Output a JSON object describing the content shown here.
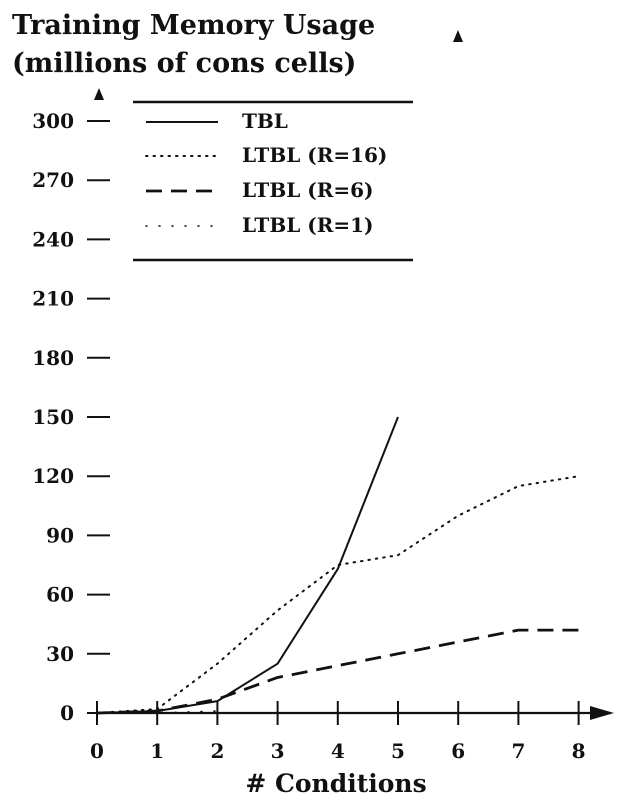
{
  "chart_data": {
    "type": "line",
    "title": "Training Memory Usage",
    "subtitle": "(millions of cons cells)",
    "xlabel": "# Conditions",
    "ylabel": "",
    "xlim": [
      0,
      8
    ],
    "ylim": [
      0,
      300
    ],
    "x_ticks": [
      "0",
      "1",
      "2",
      "3",
      "4",
      "5",
      "6",
      "7",
      "8"
    ],
    "y_ticks": [
      "0",
      "30",
      "60",
      "90",
      "120",
      "150",
      "180",
      "210",
      "240",
      "270",
      "300"
    ],
    "grid": false,
    "legend_position": "top",
    "series": [
      {
        "name": "TBL",
        "style": "solid",
        "x": [
          0,
          1,
          2,
          3,
          4,
          5
        ],
        "y": [
          0,
          1,
          6,
          25,
          73,
          150
        ]
      },
      {
        "name": "LTBL (R=16)",
        "style": "dotted",
        "x": [
          0,
          1,
          2,
          3,
          4,
          5,
          6,
          7,
          8
        ],
        "y": [
          0,
          2,
          25,
          52,
          75,
          80,
          100,
          115,
          120
        ]
      },
      {
        "name": "LTBL (R=6)",
        "style": "dashed",
        "x": [
          0,
          1,
          2,
          3,
          4,
          5,
          6,
          7,
          8
        ],
        "y": [
          0,
          1,
          7,
          18,
          24,
          30,
          36,
          42,
          42
        ]
      },
      {
        "name": "LTBL (R=1)",
        "style": "sparse-dotted",
        "x": [
          0,
          1,
          2
        ],
        "y": [
          0,
          0,
          1
        ]
      }
    ]
  }
}
